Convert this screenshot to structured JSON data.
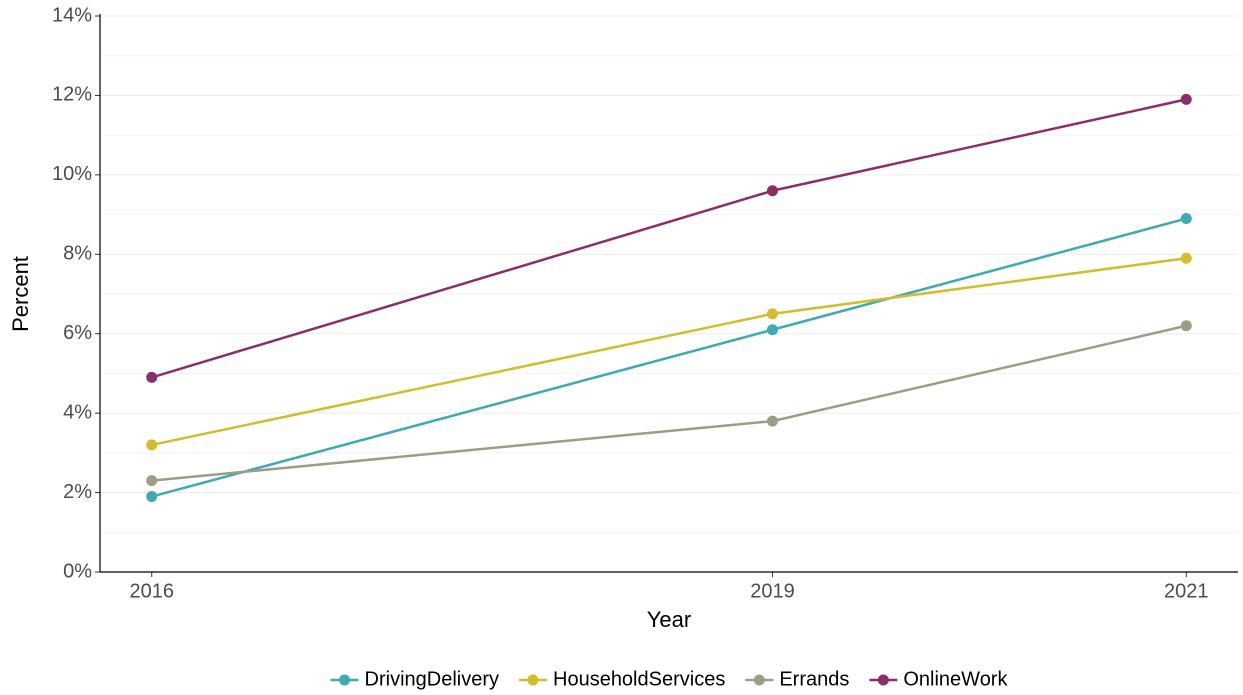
{
  "chart_data": {
    "type": "line",
    "x_label": "Year",
    "y_label": "Percent",
    "x": [
      2016,
      2019,
      2021
    ],
    "xlim": [
      2015.75,
      2021.25
    ],
    "xticks": [
      2016,
      2019,
      2021
    ],
    "ylim": [
      0,
      14
    ],
    "yticks": [
      {
        "value": 0,
        "label": "0%"
      },
      {
        "value": 2,
        "label": "2%"
      },
      {
        "value": 4,
        "label": "4%"
      },
      {
        "value": 6,
        "label": "6%"
      },
      {
        "value": 8,
        "label": "8%"
      },
      {
        "value": 10,
        "label": "10%"
      },
      {
        "value": 12,
        "label": "12%"
      },
      {
        "value": 14,
        "label": "14%"
      }
    ],
    "grid": true,
    "legend": "bottom",
    "series": [
      {
        "name": "DrivingDelivery",
        "color": "#3fa9b5",
        "values": [
          1.9,
          6.1,
          8.9
        ]
      },
      {
        "name": "HouseholdServices",
        "color": "#d4bc2a",
        "values": [
          3.2,
          6.5,
          7.9
        ]
      },
      {
        "name": "Errands",
        "color": "#9b9e85",
        "values": [
          2.3,
          3.8,
          6.2
        ]
      },
      {
        "name": "OnlineWork",
        "color": "#8b2f6b",
        "values": [
          4.9,
          9.6,
          11.9
        ]
      }
    ]
  }
}
